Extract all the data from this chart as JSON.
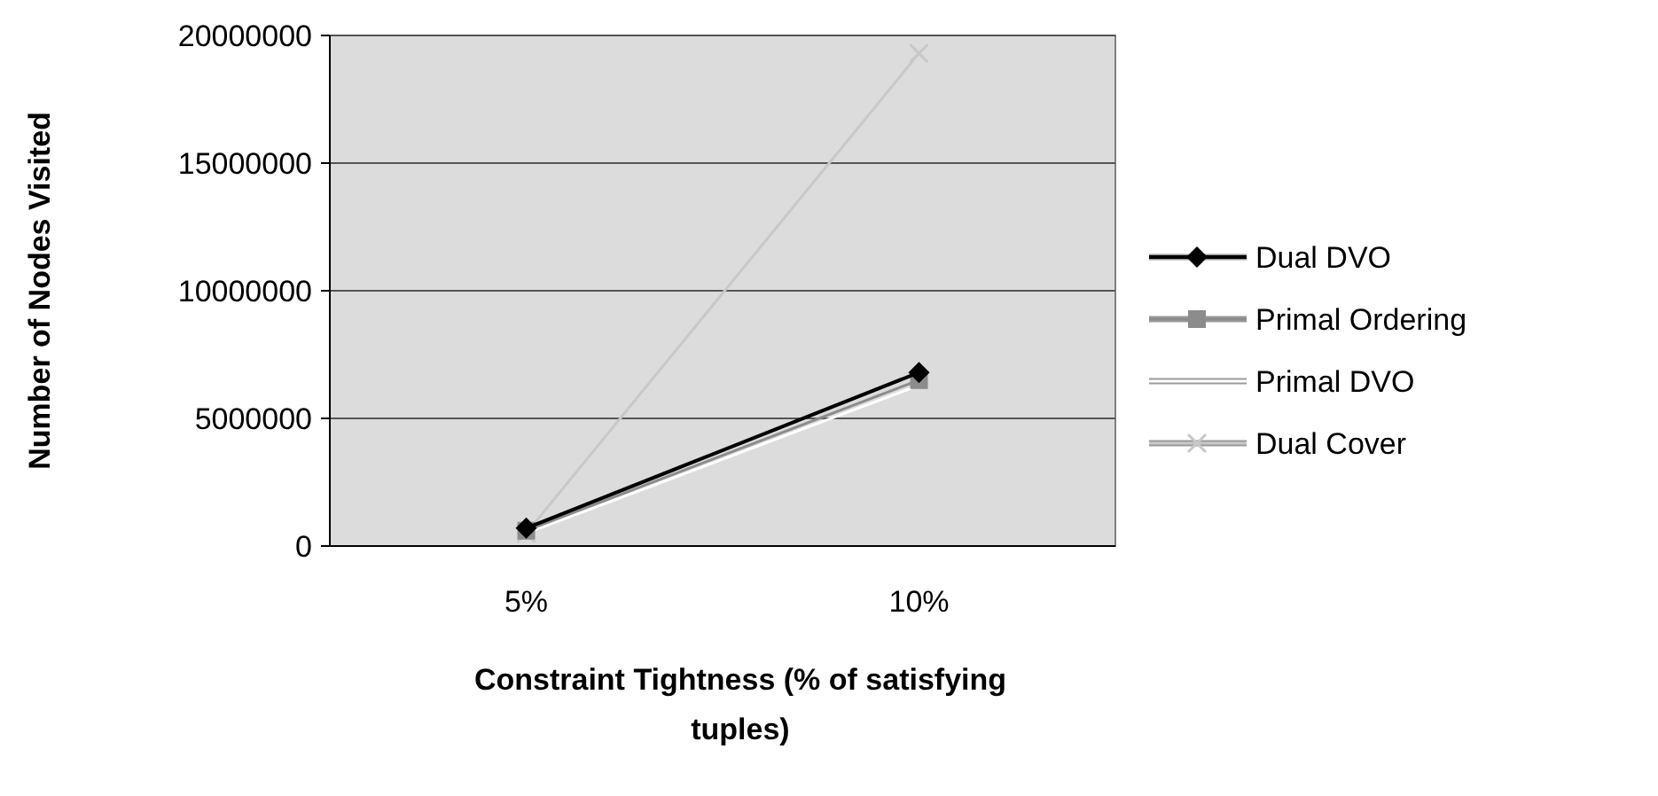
{
  "chart_data": {
    "type": "line",
    "xlabel": "Constraint Tightness (% of satisfying tuples)",
    "ylabel": "Number of Nodes Visited",
    "categories": [
      "5%",
      "10%"
    ],
    "series": [
      {
        "name": "Dual DVO",
        "color": "#000000",
        "values": [
          700000,
          6800000
        ],
        "marker": "diamond"
      },
      {
        "name": "Primal Ordering",
        "color": "#8c8c8c",
        "values": [
          600000,
          6500000
        ],
        "marker": "square"
      },
      {
        "name": "Primal DVO",
        "color": "#ffffff",
        "values": [
          500000,
          6300000
        ],
        "marker": "none"
      },
      {
        "name": "Dual Cover",
        "color": "#c8c8c8",
        "values": [
          500000,
          19300000
        ],
        "marker": "cross"
      }
    ],
    "ylim": [
      0,
      20000000
    ],
    "yticks": [
      0,
      5000000,
      10000000,
      15000000,
      20000000
    ],
    "grid": "y",
    "legend": "right"
  }
}
